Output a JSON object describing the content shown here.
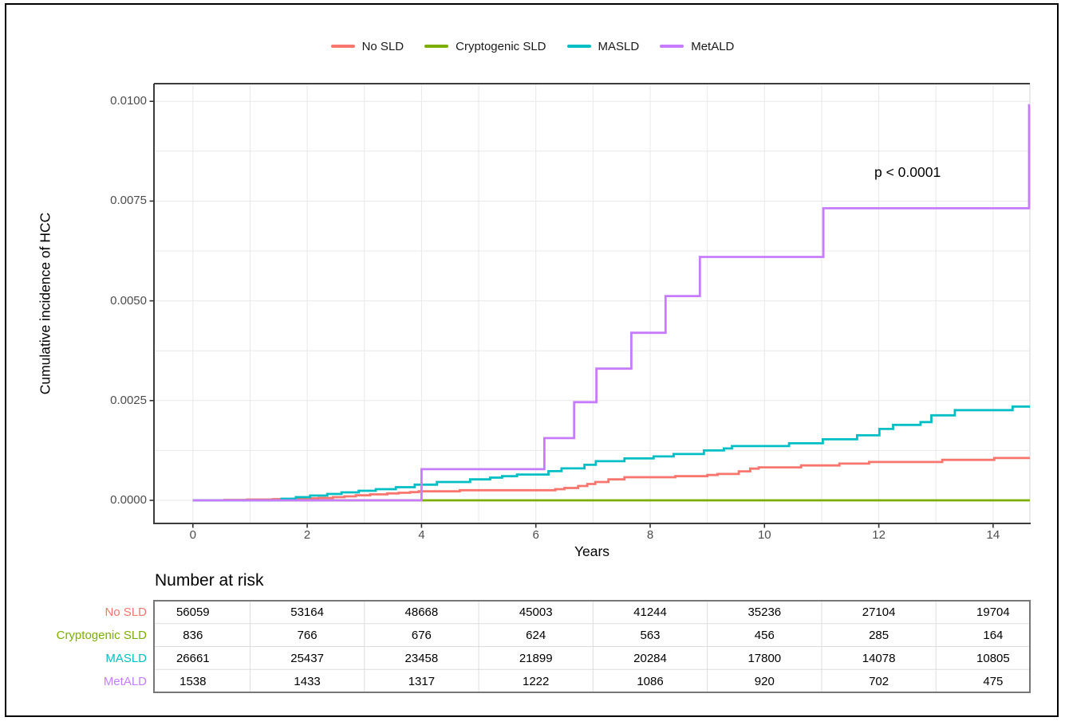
{
  "figure": {
    "p_value": "p < 0.0001",
    "x_axis_title": "Years",
    "y_axis_title": "Cumulative incidence of HCC"
  },
  "legend": {
    "items": [
      {
        "label": "No SLD",
        "color": "#F8766D"
      },
      {
        "label": "Cryptogenic SLD",
        "color": "#7CAE00"
      },
      {
        "label": "MASLD",
        "color": "#00BFC4"
      },
      {
        "label": "MetALD",
        "color": "#C77CFF"
      }
    ]
  },
  "chart_data": {
    "type": "line",
    "subtype": "cumulative-incidence-step",
    "title": "",
    "xlabel": "Years",
    "ylabel": "Cumulative incidence of HCC",
    "x_ticks": [
      0,
      2,
      4,
      6,
      8,
      10,
      12,
      14
    ],
    "x_gridline_step": 1,
    "y_ticks": [
      0.0,
      0.0025,
      0.005,
      0.0075,
      0.01
    ],
    "y_tick_labels": [
      "0.0000",
      "0.0025",
      "0.0050",
      "0.0075",
      "0.0100"
    ],
    "y_gridline_step": 0.00125,
    "xlim": [
      -0.68,
      14.64
    ],
    "ylim": [
      -0.00058,
      0.01046
    ],
    "grid": true,
    "legend_position": "top",
    "annotation": {
      "text": "p < 0.0001",
      "x": 12.6,
      "y": 0.0083
    },
    "series": [
      {
        "name": "No SLD",
        "color": "#F8766D",
        "steps": [
          [
            0,
            0
          ],
          [
            0.55,
            1e-05
          ],
          [
            0.95,
            2e-05
          ],
          [
            1.4,
            3e-05
          ],
          [
            1.75,
            4e-05
          ],
          [
            2.0,
            5e-05
          ],
          [
            2.2,
            6e-05
          ],
          [
            2.45,
            8e-05
          ],
          [
            2.65,
            0.0001
          ],
          [
            2.85,
            0.000126
          ],
          [
            3.1,
            0.00015
          ],
          [
            3.4,
            0.000174
          ],
          [
            3.6,
            0.00019
          ],
          [
            3.8,
            0.000206
          ],
          [
            3.95,
            0.000226
          ],
          [
            4.67,
            0.000254
          ],
          [
            6.34,
            0.00028
          ],
          [
            6.5,
            0.00031
          ],
          [
            6.74,
            0.00036
          ],
          [
            6.9,
            0.00041
          ],
          [
            7.04,
            0.00046
          ],
          [
            7.27,
            0.000526
          ],
          [
            7.55,
            0.00058
          ],
          [
            8.44,
            0.000606
          ],
          [
            9.0,
            0.000634
          ],
          [
            9.18,
            0.00066
          ],
          [
            9.55,
            0.000726
          ],
          [
            9.75,
            0.000794
          ],
          [
            9.9,
            0.000826
          ],
          [
            10.64,
            0.000874
          ],
          [
            11.31,
            0.00092
          ],
          [
            11.83,
            0.00096
          ],
          [
            13.11,
            0.001014
          ],
          [
            14.02,
            0.00106
          ]
        ]
      },
      {
        "name": "Cryptogenic SLD",
        "color": "#7CAE00",
        "steps": [
          [
            0,
            0
          ]
        ]
      },
      {
        "name": "MASLD",
        "color": "#00BFC4",
        "steps": [
          [
            0,
            0
          ],
          [
            1.55,
            4e-05
          ],
          [
            1.8,
            8e-05
          ],
          [
            2.05,
            0.00012
          ],
          [
            2.35,
            0.00016
          ],
          [
            2.6,
            0.0002
          ],
          [
            2.9,
            0.00024
          ],
          [
            3.2,
            0.00028
          ],
          [
            3.55,
            0.00033
          ],
          [
            3.88,
            0.000394
          ],
          [
            4.27,
            0.00046
          ],
          [
            4.85,
            0.000526
          ],
          [
            5.2,
            0.00057
          ],
          [
            5.41,
            0.000606
          ],
          [
            5.67,
            0.000646
          ],
          [
            6.22,
            0.00073
          ],
          [
            6.45,
            0.0008
          ],
          [
            6.85,
            0.00089
          ],
          [
            7.05,
            0.00098
          ],
          [
            7.55,
            0.00105
          ],
          [
            8.06,
            0.0011
          ],
          [
            8.41,
            0.00116
          ],
          [
            8.94,
            0.00125
          ],
          [
            9.29,
            0.0013
          ],
          [
            9.43,
            0.00136
          ],
          [
            10.43,
            0.00143
          ],
          [
            11.02,
            0.00153
          ],
          [
            11.62,
            0.00163
          ],
          [
            12.01,
            0.00179
          ],
          [
            12.25,
            0.00189
          ],
          [
            12.73,
            0.00196
          ],
          [
            12.92,
            0.00213
          ],
          [
            13.33,
            0.00226
          ],
          [
            14.34,
            0.00235
          ]
        ]
      },
      {
        "name": "MetALD",
        "color": "#C77CFF",
        "steps": [
          [
            0,
            0
          ],
          [
            4.0,
            0.00078
          ],
          [
            6.15,
            0.00156
          ],
          [
            6.67,
            0.00246
          ],
          [
            7.06,
            0.0033
          ],
          [
            7.67,
            0.0042
          ],
          [
            8.27,
            0.00512
          ],
          [
            8.87,
            0.0061
          ],
          [
            11.03,
            0.00732
          ],
          [
            14.63,
            0.0099
          ]
        ]
      }
    ]
  },
  "risk_table": {
    "title": "Number at risk",
    "time_points": [
      0,
      2,
      4,
      6,
      8,
      10,
      12,
      14
    ],
    "rows": [
      {
        "label": "No SLD",
        "color": "#F8766D",
        "values": [
          "56059",
          "53164",
          "48668",
          "45003",
          "41244",
          "35236",
          "27104",
          "19704"
        ]
      },
      {
        "label": "Cryptogenic SLD",
        "color": "#7CAE00",
        "values": [
          "836",
          "766",
          "676",
          "624",
          "563",
          "456",
          "285",
          "164"
        ]
      },
      {
        "label": "MASLD",
        "color": "#00BFC4",
        "values": [
          "26661",
          "25437",
          "23458",
          "21899",
          "20284",
          "17800",
          "14078",
          "10805"
        ]
      },
      {
        "label": "MetALD",
        "color": "#C77CFF",
        "values": [
          "1538",
          "1433",
          "1317",
          "1222",
          "1086",
          "920",
          "702",
          "475"
        ]
      }
    ]
  }
}
